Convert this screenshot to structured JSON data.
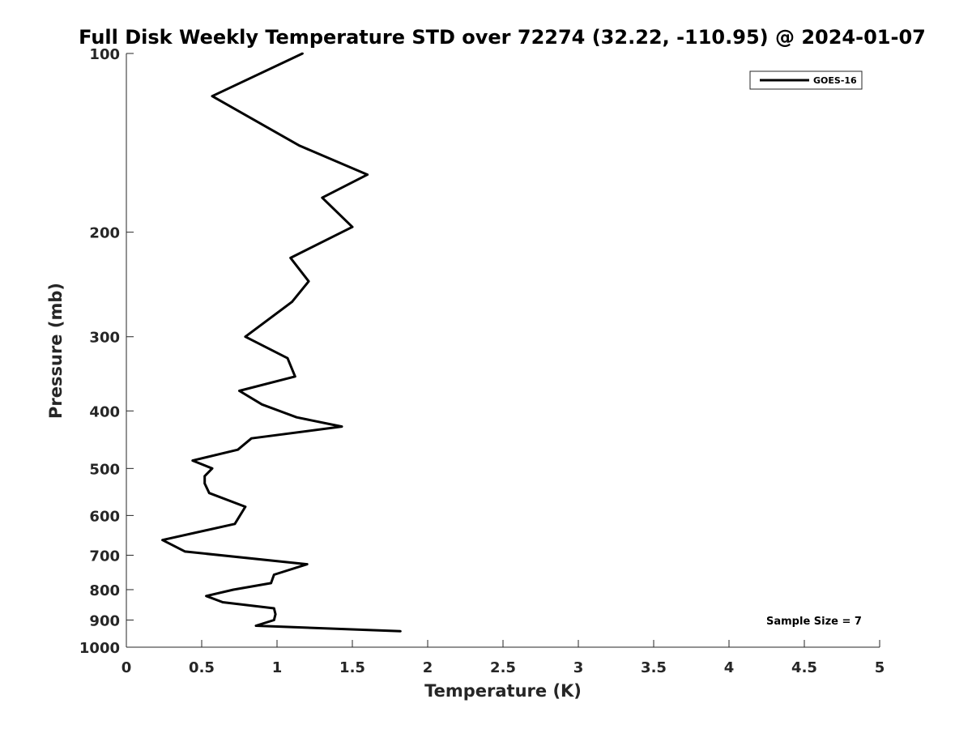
{
  "chart_data": {
    "type": "line",
    "title": "Full Disk Weekly Temperature STD over 72274 (32.22, -110.95) @ 2024-01-07",
    "xlabel": "Temperature (K)",
    "ylabel": "Pressure (mb)",
    "xlim": [
      0,
      5
    ],
    "ylim": [
      100,
      1000
    ],
    "y_scale": "log",
    "y_reversed": true,
    "x_ticks": [
      "0",
      "0.5",
      "1",
      "1.5",
      "2",
      "2.5",
      "3",
      "3.5",
      "4",
      "4.5",
      "5"
    ],
    "y_ticks": [
      "100",
      "200",
      "300",
      "400",
      "500",
      "600",
      "700",
      "800",
      "900",
      "1000"
    ],
    "grid": false,
    "legend": {
      "position": "top-right",
      "entries": [
        "GOES-16"
      ]
    },
    "annotation": "Sample Size = 7",
    "series": [
      {
        "name": "GOES-16",
        "color": "#000000",
        "x": [
          1.17,
          0.57,
          1.15,
          1.6,
          1.3,
          1.5,
          1.09,
          1.21,
          1.1,
          0.79,
          1.07,
          1.12,
          0.75,
          0.9,
          1.13,
          1.43,
          0.83,
          0.74,
          0.44,
          0.57,
          0.52,
          0.52,
          0.55,
          0.79,
          0.72,
          0.24,
          0.39,
          1.2,
          0.98,
          0.96,
          0.71,
          0.53,
          0.64,
          0.98,
          0.99,
          0.98,
          0.86,
          1.82
        ],
        "y": [
          100,
          118,
          143,
          160,
          175,
          196,
          221,
          242,
          262,
          300,
          326,
          350,
          370,
          390,
          410,
          425,
          445,
          465,
          485,
          500,
          515,
          530,
          550,
          580,
          620,
          660,
          690,
          725,
          755,
          780,
          800,
          820,
          840,
          860,
          880,
          900,
          920,
          940
        ]
      }
    ]
  }
}
